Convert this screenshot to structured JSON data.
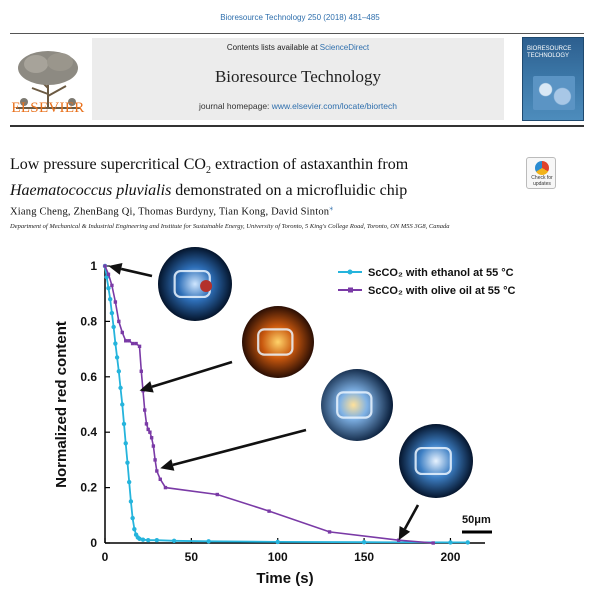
{
  "header": {
    "citation": "Bioresource Technology 250 (2018) 481–485",
    "contents_prefix": "Contents lists available at ",
    "contents_link": "ScienceDirect",
    "journal_title": "Bioresource Technology",
    "homepage_prefix": "journal homepage: ",
    "homepage_url": "www.elsevier.com/locate/biortech",
    "publisher": "ELSEVIER",
    "cover_title": "BIORESOURCE TECHNOLOGY"
  },
  "article": {
    "title_line1_a": "Low pressure supercritical CO",
    "title_sub": "2",
    "title_line1_b": " extraction of astaxanthin from",
    "title_line2_species": "Haematococcus pluvialis",
    "title_line2_rest": " demonstrated on a microfluidic chip",
    "authors": "Xiang Cheng, ZhenBang Qi, Thomas Burdyny, Tian Kong, David Sinton",
    "corresponding_mark": "⁎",
    "affiliation": "Department of Mechanical & Industrial Engineering and Institute for Sustainable Energy, University of Toronto, 5 King's College Road, Toronto, ON M5S 3G8, Canada",
    "check_updates_label": "Check for updates"
  },
  "figure": {
    "scale_bar_label": "50μm"
  },
  "colors": {
    "ethanol": "#25b4dc",
    "olive_oil": "#7a3aa6",
    "elsevier_orange": "#e9711c",
    "link_blue": "#2f6fad"
  },
  "chart_data": {
    "type": "line",
    "xlabel": "Time (s)",
    "ylabel": "Normalized red content",
    "xlim": [
      0,
      220
    ],
    "ylim": [
      0,
      1
    ],
    "xticks": [
      0,
      50,
      100,
      150,
      200
    ],
    "yticks": [
      0,
      0.2,
      0.4,
      0.6,
      0.8,
      1
    ],
    "ytick_labels": [
      "0",
      "0.2",
      "0.4",
      "0.6",
      "0.8",
      "1"
    ],
    "legend_position": "top-right",
    "series": [
      {
        "name": "ScCO₂ with ethanol at 55 °C",
        "x": [
          0,
          1,
          2,
          3,
          4,
          5,
          6,
          7,
          8,
          9,
          10,
          11,
          12,
          13,
          14,
          15,
          16,
          17,
          18,
          19,
          20,
          22,
          25,
          30,
          40,
          60,
          100,
          150,
          200,
          210
        ],
        "y": [
          1.0,
          0.96,
          0.92,
          0.88,
          0.83,
          0.78,
          0.72,
          0.67,
          0.62,
          0.56,
          0.5,
          0.43,
          0.36,
          0.29,
          0.22,
          0.15,
          0.09,
          0.05,
          0.03,
          0.02,
          0.015,
          0.012,
          0.01,
          0.01,
          0.008,
          0.006,
          0.004,
          0.003,
          0.002,
          0.002
        ]
      },
      {
        "name": "ScCO₂ with olive oil at 55 °C",
        "x": [
          0,
          2,
          4,
          6,
          8,
          10,
          12,
          14,
          16,
          18,
          20,
          21,
          22,
          23,
          24,
          25,
          26,
          27,
          28,
          29,
          30,
          32,
          35,
          65,
          95,
          130,
          170,
          190
        ],
        "y": [
          1.0,
          0.97,
          0.93,
          0.87,
          0.8,
          0.76,
          0.73,
          0.73,
          0.72,
          0.72,
          0.71,
          0.62,
          0.55,
          0.48,
          0.43,
          0.41,
          0.4,
          0.38,
          0.35,
          0.3,
          0.26,
          0.23,
          0.2,
          0.175,
          0.115,
          0.04,
          0.01,
          0.0
        ]
      }
    ],
    "arrow_targets": [
      {
        "x": 2,
        "y": 1.0
      },
      {
        "x": 20,
        "y": 0.55
      },
      {
        "x": 32,
        "y": 0.27
      },
      {
        "x": 170,
        "y": 0.01
      }
    ]
  }
}
